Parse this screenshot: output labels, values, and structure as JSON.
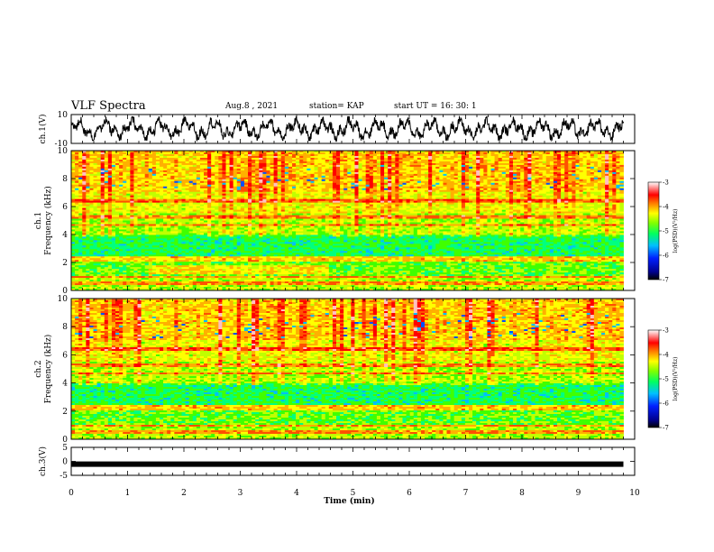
{
  "header": {
    "title": "VLF Spectra",
    "date": "Aug.8 , 2021",
    "station": "station= KAP",
    "start": "start UT = 16: 30: 1"
  },
  "colors": {
    "spectrum": [
      "#000080",
      "#0000ff",
      "#00c0ff",
      "#00ff80",
      "#40ff00",
      "#ffff00",
      "#ff8000",
      "#ff0000",
      "#ffb0b0",
      "#ffffff"
    ]
  },
  "chart_data": [
    {
      "type": "line",
      "panel": "ch1-waveform",
      "ylabel": "ch.1(V)",
      "ylim": [
        -10,
        10
      ],
      "yticks": [
        "10",
        "-10"
      ],
      "xlim": [
        0,
        10
      ],
      "description_series": "dense noisy voltage trace oscillating roughly between -7 and 8 V"
    },
    {
      "type": "heatmap",
      "panel": "ch1-spectrogram",
      "ylabel": "ch.1\nFrequency (kHz)",
      "ylim": [
        0,
        10
      ],
      "yticks": [
        "0",
        "2",
        "4",
        "6",
        "8",
        "10"
      ],
      "xlim": [
        0,
        9.8
      ],
      "colorbar": {
        "label": "log(PSD)(V²/Hz)",
        "range": [
          -7,
          -3
        ],
        "ticks": [
          "-3",
          "-4",
          "-5",
          "-6",
          "-7"
        ]
      }
    },
    {
      "type": "heatmap",
      "panel": "ch2-spectrogram",
      "ylabel": "ch.2\nFrequency (kHz)",
      "ylim": [
        0,
        10
      ],
      "yticks": [
        "0",
        "2",
        "4",
        "6",
        "8",
        "10"
      ],
      "xlim": [
        0,
        9.8
      ],
      "colorbar": {
        "label": "log(PSD)(V²/Hz)",
        "range": [
          -7,
          -3
        ],
        "ticks": [
          "-3",
          "-4",
          "-5",
          "-6",
          "-7"
        ]
      }
    },
    {
      "type": "line",
      "panel": "ch3-waveform",
      "ylabel": "ch.3(V)",
      "ylim": [
        -5,
        5
      ],
      "yticks": [
        "5",
        "0",
        "-5"
      ],
      "xlim": [
        0,
        10
      ],
      "level": -1
    }
  ],
  "xaxis": {
    "label": "Time (min)",
    "ticks": [
      "0",
      "1",
      "2",
      "3",
      "4",
      "5",
      "6",
      "7",
      "8",
      "9",
      "10"
    ]
  }
}
